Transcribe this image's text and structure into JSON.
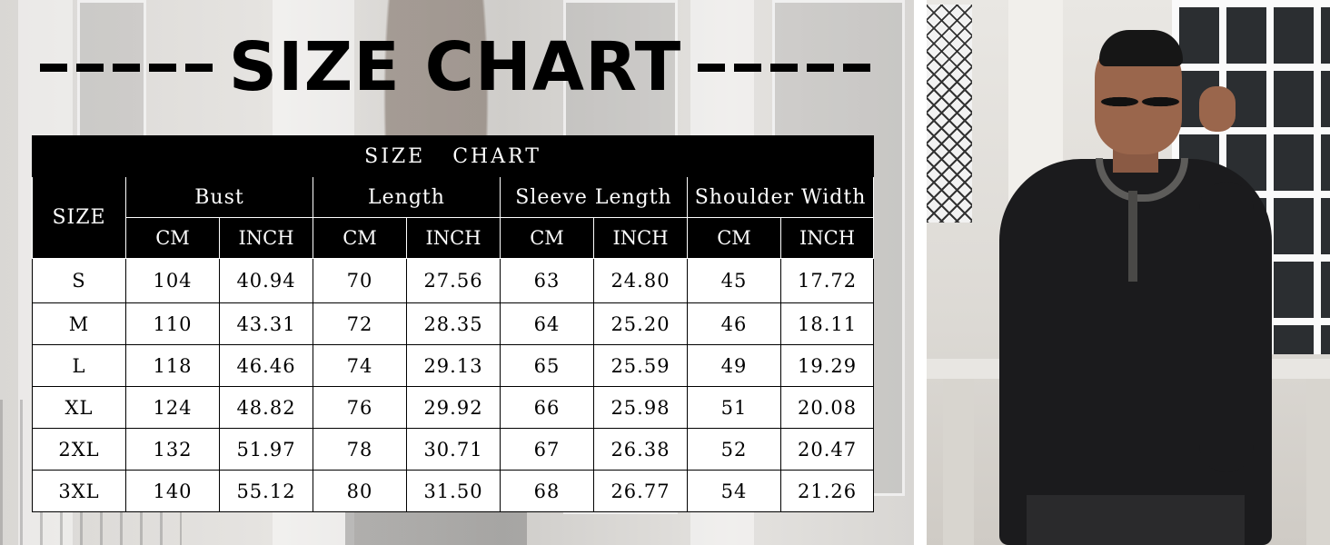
{
  "header": {
    "title": "SIZE CHART"
  },
  "table": {
    "title": "SIZE   CHART",
    "size_header": "SIZE",
    "groups": [
      "Bust",
      "Length",
      "Sleeve Length",
      "Shoulder Width"
    ],
    "units": [
      "CM",
      "INCH",
      "CM",
      "INCH",
      "CM",
      "INCH",
      "CM",
      "INCH"
    ],
    "rows": [
      [
        "S",
        "104",
        "40.94",
        "70",
        "27.56",
        "63",
        "24.80",
        "45",
        "17.72"
      ],
      [
        "M",
        "110",
        "43.31",
        "72",
        "28.35",
        "64",
        "25.20",
        "46",
        "18.11"
      ],
      [
        "L",
        "118",
        "46.46",
        "74",
        "29.13",
        "65",
        "25.59",
        "49",
        "19.29"
      ],
      [
        "XL",
        "124",
        "48.82",
        "76",
        "29.92",
        "66",
        "25.98",
        "51",
        "20.08"
      ],
      [
        "2XL",
        "132",
        "51.97",
        "78",
        "30.71",
        "67",
        "26.38",
        "52",
        "20.47"
      ],
      [
        "3XL",
        "140",
        "55.12",
        "80",
        "31.50",
        "68",
        "26.77",
        "54",
        "21.26"
      ]
    ]
  },
  "colors": {
    "header_bg": "#000000",
    "header_text": "#ffffff",
    "body_bg": "#ffffff",
    "body_text": "#000000"
  }
}
